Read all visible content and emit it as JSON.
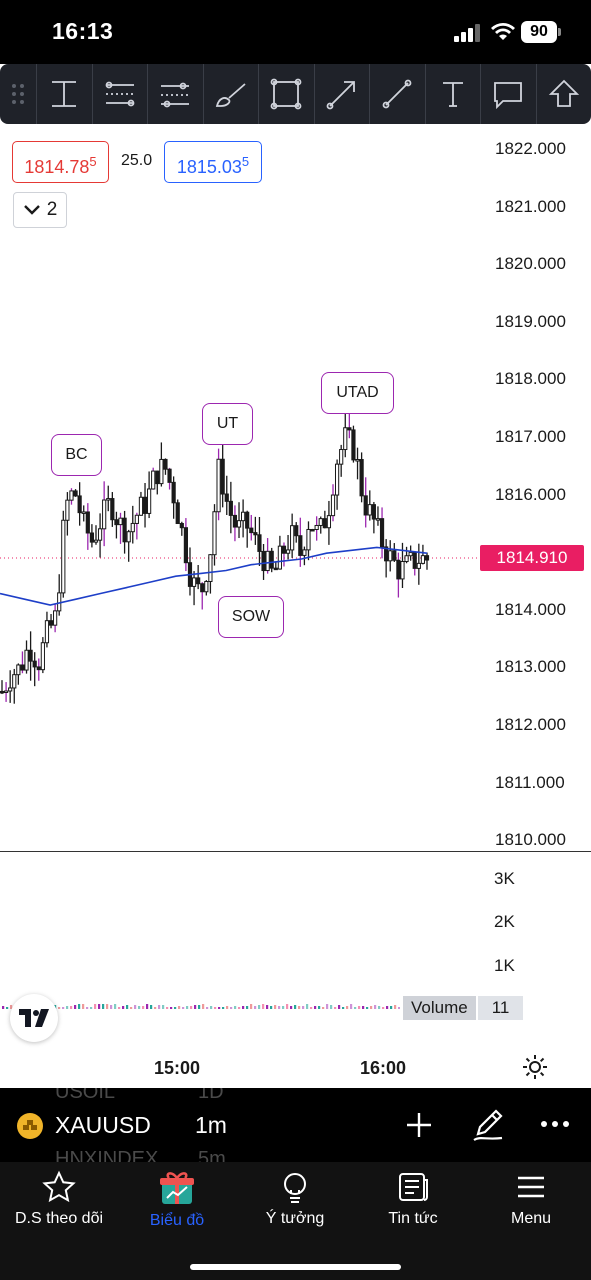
{
  "status_bar": {
    "time": "16:13",
    "battery": "90"
  },
  "toolbar": {
    "tools": [
      {
        "name": "cross-line-tool-icon"
      },
      {
        "name": "parallel-channel-tool-icon"
      },
      {
        "name": "regression-tool-icon"
      },
      {
        "name": "brush-tool-icon"
      },
      {
        "name": "rectangle-tool-icon"
      },
      {
        "name": "arrow-tool-icon"
      },
      {
        "name": "trend-line-tool-icon"
      },
      {
        "name": "text-tool-icon"
      },
      {
        "name": "callout-tool-icon"
      },
      {
        "name": "arrow-up-tool-icon"
      }
    ]
  },
  "quote": {
    "bid": "1814.78",
    "bid_pip": "5",
    "spread": "25.0",
    "ask": "1815.03",
    "ask_pip": "5"
  },
  "indicators": {
    "count": "2"
  },
  "price_scale": [
    "1822.000",
    "1821.000",
    "1820.000",
    "1819.000",
    "1818.000",
    "1817.000",
    "1816.000",
    "1814.000",
    "1813.000",
    "1812.000",
    "1811.000",
    "1810.000"
  ],
  "current_price": "1814.910",
  "annotations": {
    "bc": "BC",
    "ut": "UT",
    "utad": "UTAD",
    "sow": "SOW"
  },
  "volume": {
    "scale": [
      "3K",
      "2K",
      "1K"
    ],
    "name": "Volume",
    "value": "11"
  },
  "time_axis": [
    "15:00",
    "16:00"
  ],
  "symbol": {
    "name": "XAUUSD",
    "interval": "1m",
    "ghost_above": [
      "USOIL",
      "1D"
    ],
    "ghost_below": [
      "HNXINDEX",
      "5m"
    ]
  },
  "nav": {
    "watchlist": "D.S theo dõi",
    "chart": "Biểu đồ",
    "ideas": "Ý tưởng",
    "news": "Tin tức",
    "menu": "Menu"
  },
  "colors": {
    "up": "#1a1a1a",
    "down": "#1a1a1a",
    "wick_accent": "#9c27b0",
    "ma": "#1e3fc8",
    "price_tag": "#e91e63",
    "accent": "#2962ff"
  },
  "chart_data": {
    "type": "candlestick",
    "symbol": "XAUUSD",
    "interval": "1m",
    "ylim": [
      1810,
      1822.5
    ],
    "last_price": 1814.91,
    "close_path": [
      1812.6,
      1812.9,
      1813.0,
      1813.4,
      1813.1,
      1813.6,
      1813.9,
      1815.8,
      1816.1,
      1815.5,
      1815.2,
      1815.6,
      1815.9,
      1815.5,
      1815.4,
      1815.7,
      1815.9,
      1816.4,
      1816.5,
      1816.0,
      1815.3,
      1814.5,
      1814.3,
      1815.0,
      1816.5,
      1815.8,
      1815.4,
      1815.5,
      1815.2,
      1814.9,
      1814.6,
      1815.0,
      1815.3,
      1815.0,
      1815.6,
      1815.3,
      1815.7,
      1816.6,
      1817.0,
      1816.8,
      1815.9,
      1815.6,
      1815.2,
      1814.9,
      1814.7,
      1814.8,
      1814.9,
      1814.9
    ],
    "ma_path": [
      1814.3,
      1814.2,
      1814.1,
      1814.2,
      1814.3,
      1814.4,
      1814.5,
      1814.6,
      1814.65,
      1814.7,
      1814.8,
      1814.85,
      1814.9,
      1815.0,
      1815.05,
      1815.1,
      1815.05,
      1815.0
    ],
    "labels": [
      {
        "text": "BC",
        "price": 1816.3
      },
      {
        "text": "UT",
        "price": 1816.9
      },
      {
        "text": "UTAD",
        "price": 1817.3
      },
      {
        "text": "SOW",
        "price": 1814.2
      }
    ]
  }
}
